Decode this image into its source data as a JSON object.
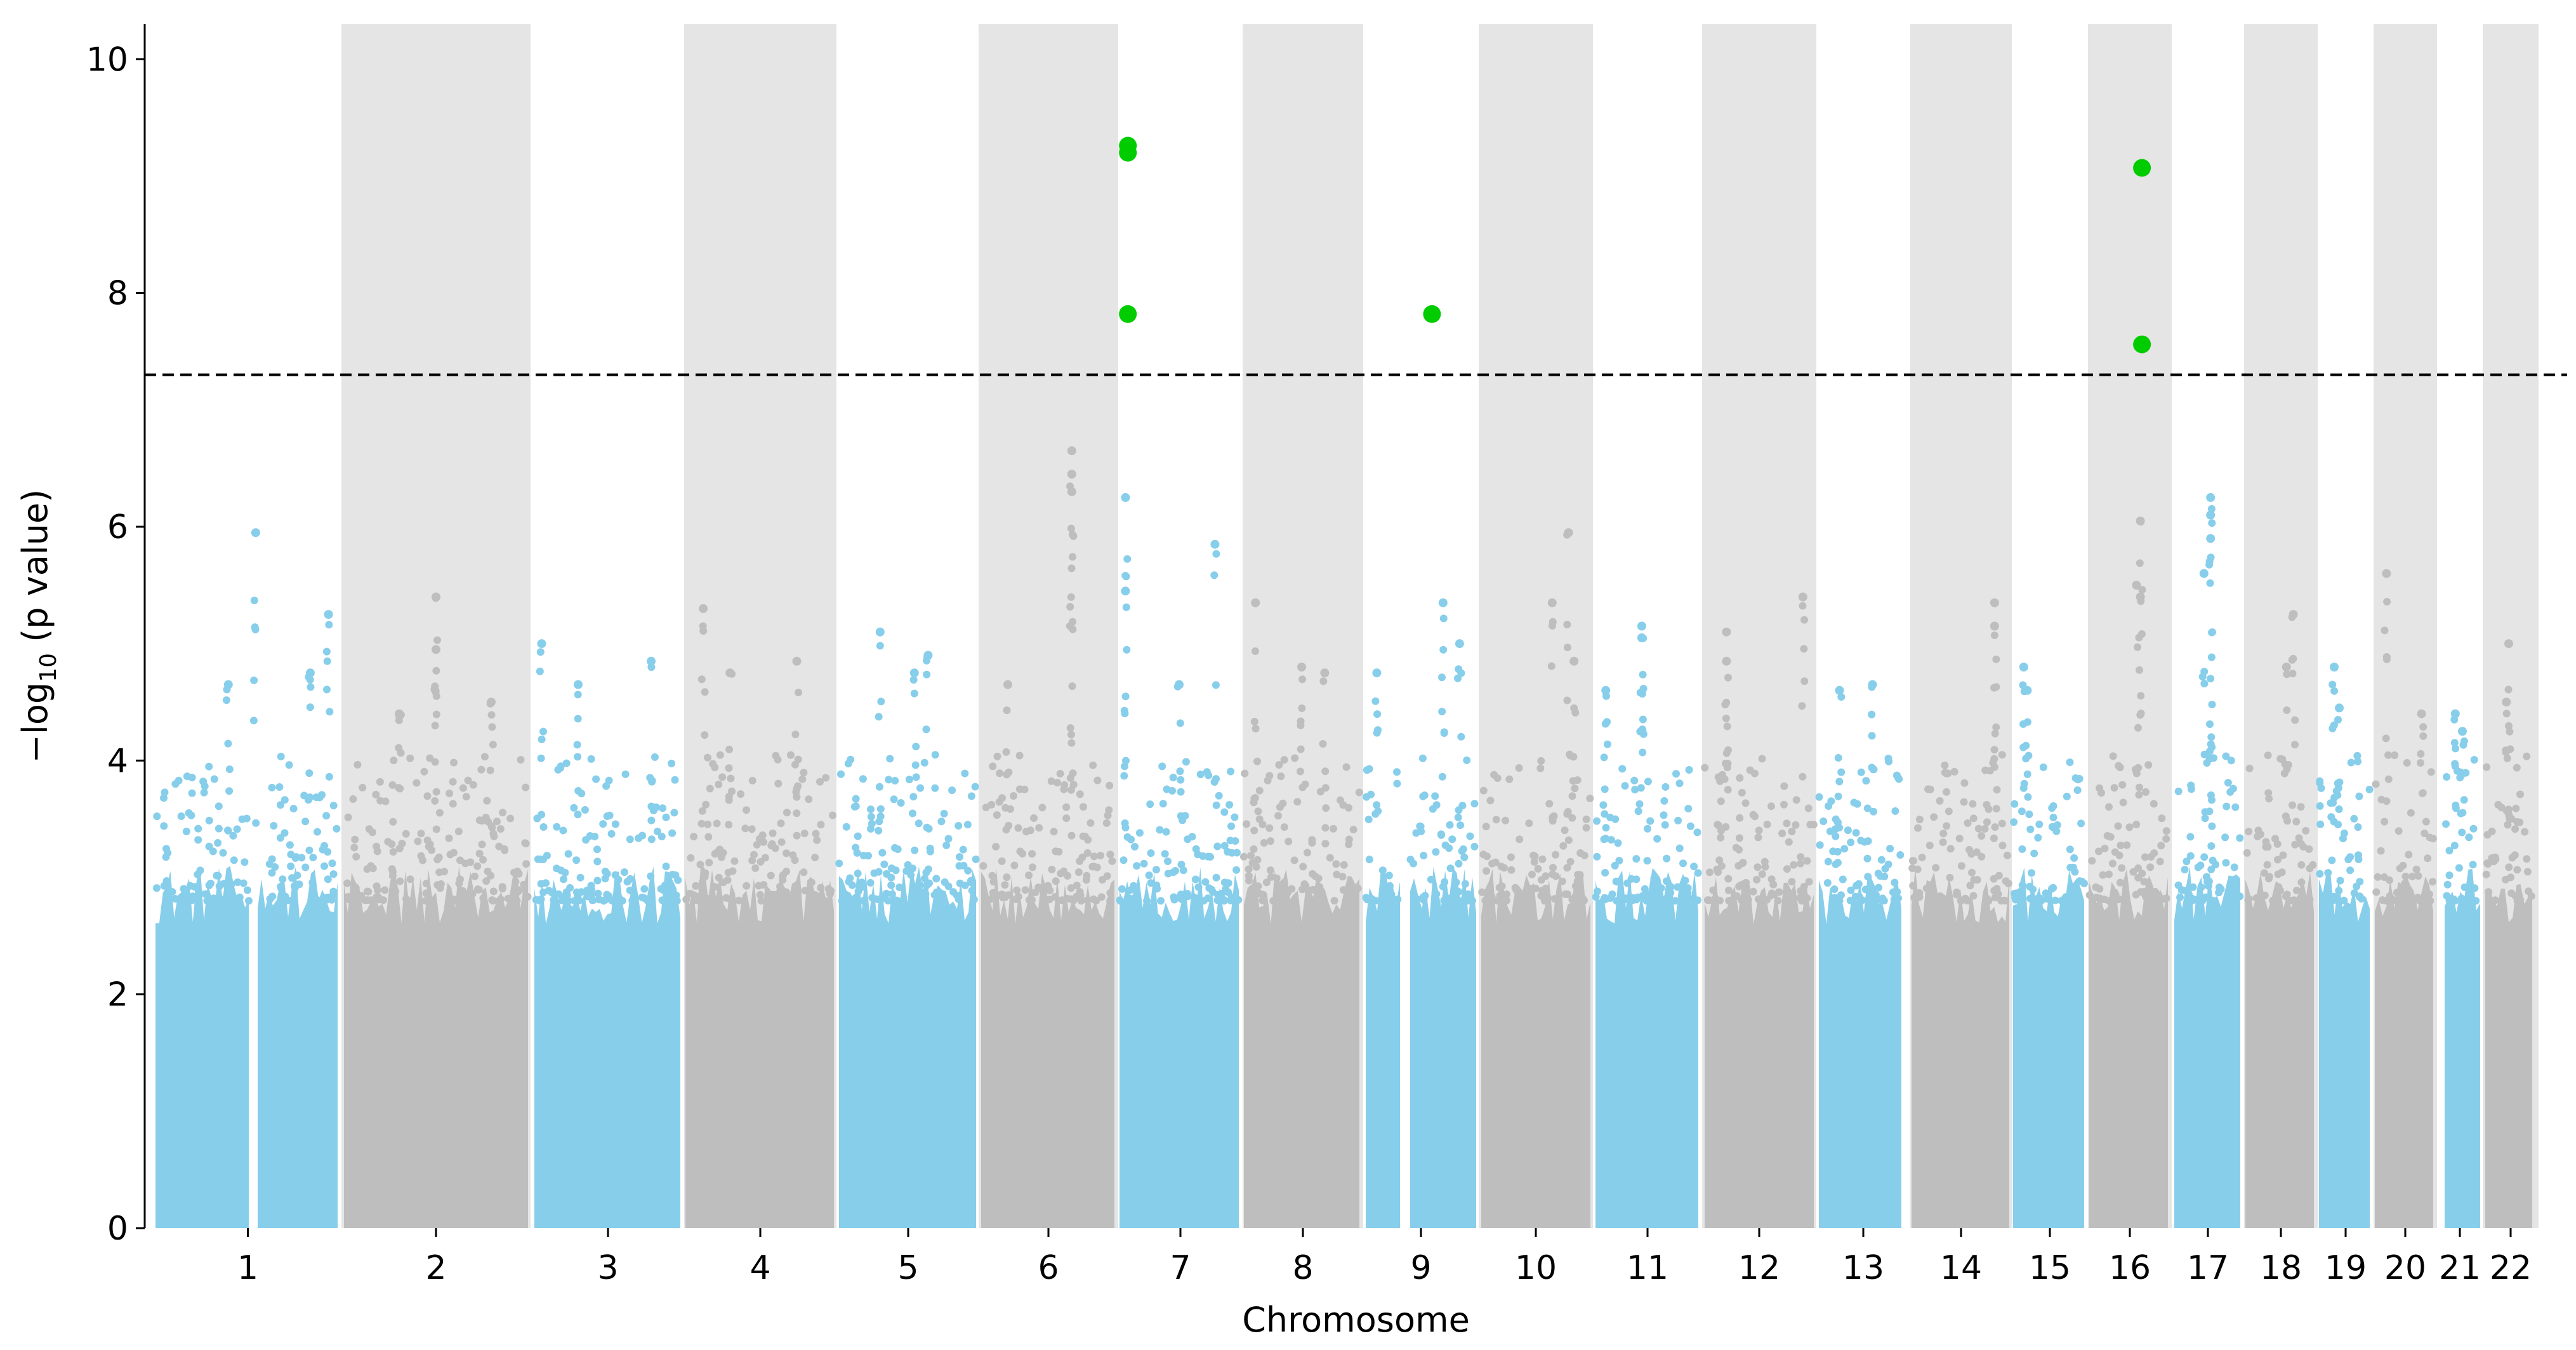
{
  "chart_data": {
    "type": "scatter",
    "subtype": "manhattan",
    "title": "",
    "xlabel": "Chromosome",
    "ylabel": "−log",
    "ylabel_subscript": "10",
    "ylabel_suffix": " (p value)",
    "ylim": [
      0,
      10.3
    ],
    "yticks": [
      0,
      2,
      4,
      6,
      8,
      10
    ],
    "grid": false,
    "legend": "none",
    "significance_threshold": 7.3,
    "colors": {
      "odd": "#87ceeb",
      "even": "#bebebe",
      "band": "#e5e5e5",
      "significant": "#00cc00",
      "threshold": "#000000"
    },
    "chromosomes": [
      {
        "label": "1",
        "color": "odd",
        "max": 5.95,
        "peaks": [
          [
            0.55,
            5.95
          ],
          [
            0.95,
            5.25
          ],
          [
            0.85,
            4.75
          ],
          [
            0.4,
            4.65
          ]
        ]
      },
      {
        "label": "2",
        "color": "even",
        "max": 5.4,
        "peaks": [
          [
            0.5,
            5.4
          ],
          [
            0.5,
            4.95
          ],
          [
            0.3,
            4.4
          ],
          [
            0.8,
            4.5
          ]
        ]
      },
      {
        "label": "3",
        "color": "odd",
        "max": 5.0,
        "peaks": [
          [
            0.05,
            5.0
          ],
          [
            0.3,
            4.65
          ],
          [
            0.8,
            4.85
          ]
        ]
      },
      {
        "label": "4",
        "color": "even",
        "max": 5.3,
        "peaks": [
          [
            0.12,
            5.3
          ],
          [
            0.75,
            4.85
          ],
          [
            0.3,
            4.75
          ]
        ]
      },
      {
        "label": "5",
        "color": "odd",
        "max": 5.1,
        "peaks": [
          [
            0.3,
            5.1
          ],
          [
            0.65,
            4.9
          ],
          [
            0.55,
            4.75
          ]
        ]
      },
      {
        "label": "6",
        "color": "even",
        "max": 6.65,
        "peaks": [
          [
            0.68,
            6.65
          ],
          [
            0.68,
            6.45
          ],
          [
            0.68,
            6.3
          ],
          [
            0.2,
            4.65
          ]
        ]
      },
      {
        "label": "7",
        "color": "odd",
        "max": 6.25,
        "peaks": [
          [
            0.05,
            6.25
          ],
          [
            0.05,
            5.45
          ],
          [
            0.8,
            5.85
          ],
          [
            0.5,
            4.65
          ]
        ]
      },
      {
        "label": "8",
        "color": "even",
        "max": 5.35,
        "peaks": [
          [
            0.1,
            5.35
          ],
          [
            0.5,
            4.8
          ],
          [
            0.7,
            4.75
          ]
        ]
      },
      {
        "label": "9",
        "color": "odd",
        "max": 5.35,
        "peaks": [
          [
            0.7,
            5.35
          ],
          [
            0.85,
            5.0
          ],
          [
            0.1,
            4.75
          ]
        ]
      },
      {
        "label": "10",
        "color": "even",
        "max": 5.95,
        "peaks": [
          [
            0.8,
            5.95
          ],
          [
            0.65,
            5.35
          ],
          [
            0.85,
            4.85
          ]
        ]
      },
      {
        "label": "11",
        "color": "odd",
        "max": 5.15,
        "peaks": [
          [
            0.45,
            5.15
          ],
          [
            0.45,
            5.05
          ],
          [
            0.1,
            4.6
          ]
        ]
      },
      {
        "label": "12",
        "color": "even",
        "max": 5.4,
        "peaks": [
          [
            0.9,
            5.4
          ],
          [
            0.2,
            5.1
          ],
          [
            0.2,
            4.85
          ]
        ]
      },
      {
        "label": "13",
        "color": "odd",
        "max": 4.65,
        "peaks": [
          [
            0.25,
            4.6
          ],
          [
            0.65,
            4.65
          ]
        ]
      },
      {
        "label": "14",
        "color": "even",
        "max": 5.35,
        "peaks": [
          [
            0.85,
            5.35
          ],
          [
            0.85,
            5.15
          ]
        ]
      },
      {
        "label": "15",
        "color": "odd",
        "max": 4.8,
        "peaks": [
          [
            0.15,
            4.8
          ],
          [
            0.2,
            4.6
          ]
        ]
      },
      {
        "label": "16",
        "color": "even",
        "max": 6.05,
        "peaks": [
          [
            0.65,
            6.05
          ],
          [
            0.6,
            5.5
          ],
          [
            0.65,
            5.4
          ]
        ]
      },
      {
        "label": "17",
        "color": "odd",
        "max": 6.25,
        "peaks": [
          [
            0.55,
            6.25
          ],
          [
            0.55,
            6.1
          ],
          [
            0.55,
            5.9
          ],
          [
            0.45,
            5.6
          ]
        ]
      },
      {
        "label": "18",
        "color": "even",
        "max": 5.25,
        "peaks": [
          [
            0.7,
            5.25
          ],
          [
            0.6,
            4.8
          ]
        ]
      },
      {
        "label": "19",
        "color": "odd",
        "max": 4.8,
        "peaks": [
          [
            0.3,
            4.8
          ],
          [
            0.4,
            4.45
          ]
        ]
      },
      {
        "label": "20",
        "color": "even",
        "max": 5.6,
        "peaks": [
          [
            0.2,
            5.6
          ],
          [
            0.8,
            4.4
          ]
        ]
      },
      {
        "label": "21",
        "color": "odd",
        "max": 4.4,
        "peaks": [
          [
            0.3,
            4.4
          ],
          [
            0.5,
            4.25
          ]
        ]
      },
      {
        "label": "22",
        "color": "even",
        "max": 5.0,
        "peaks": [
          [
            0.5,
            5.0
          ],
          [
            0.45,
            4.5
          ]
        ]
      }
    ],
    "significant_hits": [
      {
        "chromosome": "7",
        "pos": 0.07,
        "y": 9.26
      },
      {
        "chromosome": "7",
        "pos": 0.07,
        "y": 9.2
      },
      {
        "chromosome": "7",
        "pos": 0.07,
        "y": 7.82
      },
      {
        "chromosome": "9",
        "pos": 0.6,
        "y": 7.82
      },
      {
        "chromosome": "16",
        "pos": 0.67,
        "y": 9.07
      },
      {
        "chromosome": "16",
        "pos": 0.67,
        "y": 7.56
      }
    ]
  }
}
